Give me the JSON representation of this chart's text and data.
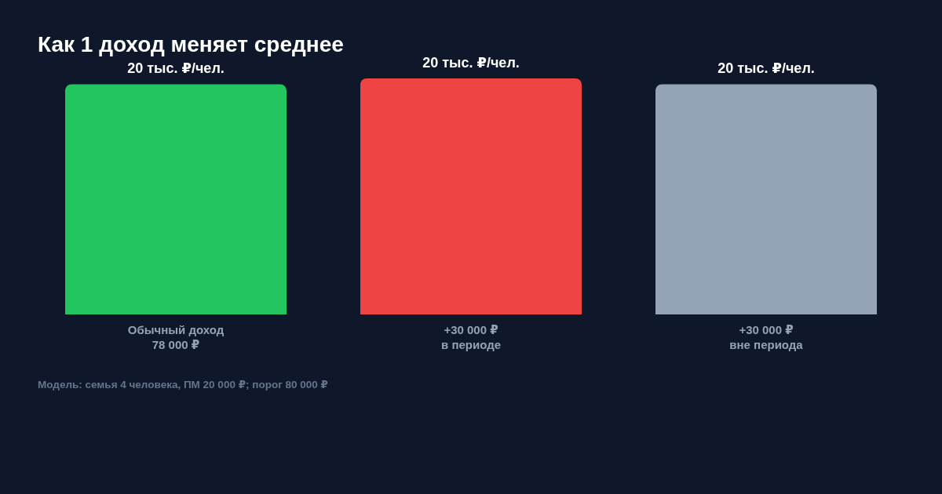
{
  "chart_data": {
    "type": "bar",
    "title": "Как 1 доход меняет среднее",
    "categories": [
      "Обычный доход\n78 000 ₽",
      "+30 000 ₽\nв периоде",
      "+30 000 ₽\nвне периода"
    ],
    "values": [
      19.5,
      20,
      19.5
    ],
    "colors": [
      "#22c55e",
      "#ef4444",
      "#94a3b8"
    ],
    "value_labels": [
      "20 тыс. ₽/чел.",
      "20 тыс. ₽/чел.",
      "20 тыс. ₽/чел."
    ],
    "ylim": [
      0,
      20
    ],
    "tick_labels": "x",
    "annotations": [
      "Модель: семья 4 человека, ПМ 20 000 ₽; порог 80 000 ₽"
    ]
  }
}
